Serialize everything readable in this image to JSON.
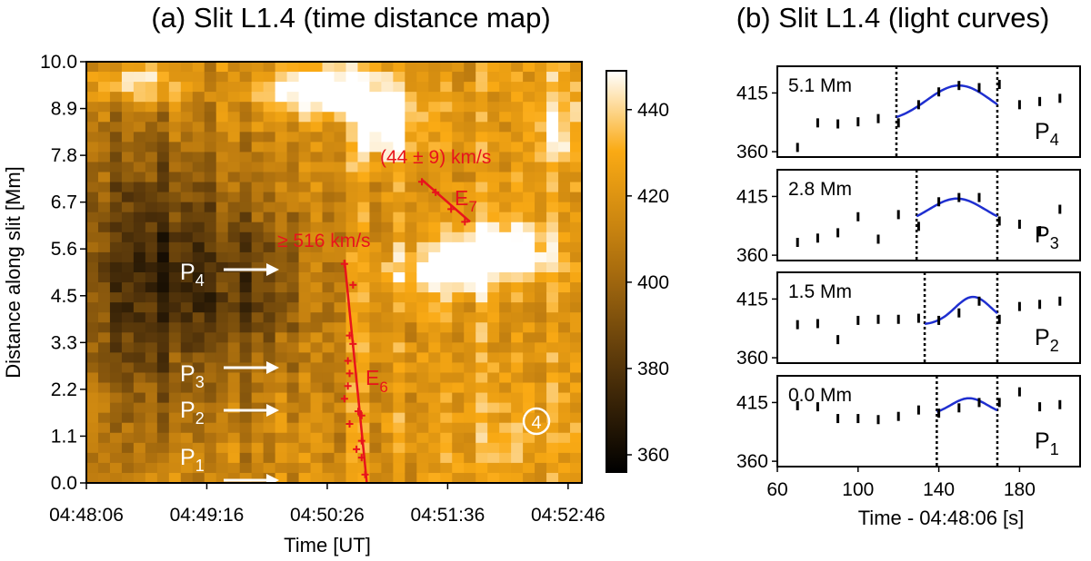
{
  "chart_data": [
    {
      "type": "heatmap",
      "title": "(a) Slit L1.4 (time distance map)",
      "xlabel": "Time [UT]",
      "ylabel": "Distance along slit [Mm]",
      "x_ticks": [
        "04:48:06",
        "04:49:16",
        "04:50:26",
        "04:51:36",
        "04:52:46"
      ],
      "y_ticks": [
        "0.0",
        "1.1",
        "2.2",
        "3.3",
        "4.5",
        "5.6",
        "6.7",
        "7.8",
        "8.9",
        "10.0"
      ],
      "xlim_s": [
        0,
        288
      ],
      "ylim": [
        0,
        10.0
      ],
      "colorbar": {
        "ticks": [
          "360",
          "380",
          "400",
          "420",
          "440"
        ],
        "range": [
          356,
          449
        ]
      },
      "labels": {
        "p1": "P",
        "p1_sub": "1",
        "p2": "P",
        "p2_sub": "2",
        "p3": "P",
        "p3_sub": "3",
        "p4": "P",
        "p4_sub": "4"
      },
      "marker_label": "4",
      "fits": [
        {
          "label": "E",
          "sub": "6",
          "speed": "≥ 516 km/s",
          "line": [
            [
              150,
              5.3
            ],
            [
              163,
              0.0
            ]
          ],
          "points": [
            [
              150,
              5.2
            ],
            [
              155,
              4.7
            ],
            [
              153,
              3.5
            ],
            [
              155,
              3.3
            ],
            [
              152,
              2.9
            ],
            [
              153,
              2.6
            ],
            [
              152,
              2.3
            ],
            [
              150,
              2.0
            ],
            [
              158,
              1.7
            ],
            [
              160,
              1.6
            ],
            [
              153,
              1.4
            ],
            [
              160,
              1.0
            ],
            [
              157,
              0.8
            ],
            [
              160,
              0.6
            ],
            [
              162,
              0.2
            ]
          ]
        },
        {
          "label": "E",
          "sub": "7",
          "speed": "(44 ± 9) km/s",
          "line": [
            [
              195,
              7.2
            ],
            [
              223,
              6.2
            ]
          ],
          "points": [
            [
              195,
              7.15
            ],
            [
              203,
              6.9
            ],
            [
              212,
              6.5
            ],
            [
              220,
              6.2
            ]
          ]
        }
      ]
    },
    {
      "type": "line",
      "title": "(b) Slit L1.4 (light curves)",
      "xlabel": "Time - 04:48:06 [s]",
      "x_ticks": [
        60,
        100,
        140,
        180
      ],
      "xlim": [
        60,
        210
      ],
      "y_ticks": [
        360,
        415
      ],
      "ylim": [
        355,
        440
      ],
      "panels": [
        {
          "distance": "5.1 Mm",
          "label": "P",
          "sub": "4",
          "vlines": [
            119,
            169
          ],
          "x": [
            70,
            80,
            90,
            100,
            110,
            120,
            130,
            140,
            150,
            160,
            170,
            180,
            190,
            200
          ],
          "y": [
            364,
            387,
            386,
            388,
            391,
            387,
            404,
            416,
            422,
            420,
            423,
            404,
            407,
            410
          ],
          "fit": {
            "x0": 119,
            "x1": 169,
            "base": 387,
            "peak": 422,
            "center": 150,
            "sigma": 16
          }
        },
        {
          "distance": "2.8 Mm",
          "label": "P",
          "sub": "3",
          "vlines": [
            129,
            169
          ],
          "x": [
            70,
            80,
            90,
            100,
            110,
            120,
            130,
            140,
            150,
            160,
            170,
            180,
            190,
            200
          ],
          "y": [
            372,
            376,
            381,
            396,
            375,
            398,
            387,
            410,
            414,
            414,
            392,
            389,
            383,
            403
          ],
          "fit": {
            "x0": 129,
            "x1": 169,
            "base": 387,
            "peak": 413,
            "center": 149,
            "sigma": 14
          }
        },
        {
          "distance": "1.5 Mm",
          "label": "P",
          "sub": "2",
          "vlines": [
            133,
            169
          ],
          "x": [
            70,
            80,
            90,
            100,
            110,
            120,
            130,
            140,
            150,
            160,
            170,
            180,
            190,
            200
          ],
          "y": [
            391,
            392,
            377,
            395,
            396,
            396,
            397,
            395,
            402,
            413,
            396,
            408,
            410,
            413
          ],
          "fit": {
            "x0": 133,
            "x1": 169,
            "base": 391,
            "peak": 417,
            "center": 157,
            "sigma": 9
          }
        },
        {
          "distance": "0.0 Mm",
          "label": "P",
          "sub": "1",
          "vlines": [
            139,
            169
          ],
          "x": [
            70,
            80,
            90,
            100,
            110,
            120,
            130,
            140,
            150,
            160,
            170,
            180,
            190,
            200
          ],
          "y": [
            412,
            411,
            400,
            400,
            399,
            402,
            408,
            405,
            410,
            415,
            415,
            425,
            411,
            413
          ],
          "fit": {
            "x0": 139,
            "x1": 169,
            "base": 403,
            "peak": 419,
            "center": 155,
            "sigma": 9
          }
        }
      ]
    }
  ]
}
